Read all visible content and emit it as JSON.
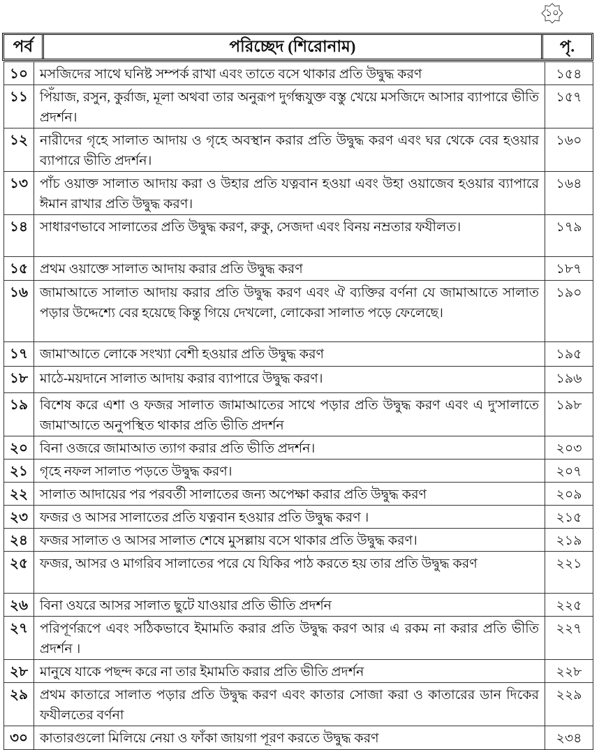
{
  "page_number": "১০",
  "header": {
    "col_part": "পর্ব",
    "col_chapter": "পরিচ্ছেদ (শিরোনাম)",
    "col_page": "পৃ."
  },
  "rows": [
    {
      "no": "১০",
      "title": "মসজিদের সাথে ঘনিষ্ট সম্পর্ক রাখা এবং তাতে বসে থাকার প্রতি উদ্বুদ্ধ করণ",
      "page": "১৫৪"
    },
    {
      "no": "১১",
      "title": "পিঁয়াজ, রসুন, কুর্রাজ, মূলা অথবা তার অনুরূপ দুর্গন্ধযুক্ত বস্তু খেয়ে মসজিদে আসার ব্যাপারে ভীতি প্রদর্শন।",
      "page": "১৫৭"
    },
    {
      "no": "১২",
      "title": "নারীদের গৃহে সালাত আদায় ও গৃহে অবস্থান করার প্রতি উদ্বুদ্ধ করণ এবং ঘর থেকে বের হওয়ার ব্যাপারে ভীতি প্রদর্শন।",
      "page": "১৬০"
    },
    {
      "no": "১৩",
      "title": "পাঁচ ওয়াক্ত সালাত আদায় করা ও উহার প্রতি যত্নবান হওয়া এবং উহা ওয়াজেব হওয়ার ব্যাপারে ঈমান রাখার প্রতি উদ্বুদ্ধ করণ।",
      "page": "১৬৪"
    },
    {
      "no": "১৪",
      "title": "সাধারণভাবে সালাতের প্রতি উদ্বুদ্ধ করণ, রুকু, সেজদা এবং বিনয় নম্রতার ফযীলত।",
      "page": "১৭৯"
    },
    {
      "no": "১৫",
      "title": "প্রথম ওয়াক্তে সালাত আদায় করার প্রতি উদ্বুদ্ধ করণ",
      "page": "১৮৭"
    },
    {
      "no": "১৬",
      "title": "জামাআতে সালাত আদায় করার প্রতি উদ্বুদ্ধ করণ এবং ঐ ব্যক্তির বর্ণনা যে জামাআতে সালাত পড়ার উদ্দেশ্যে বের হয়েছে কিন্তু গিয়ে দেখলো, লোকেরা সালাত পড়ে ফেলেছে।",
      "page": "১৯০"
    },
    {
      "no": "১৭",
      "title": "জামা'আতে লোকে সংখ্যা বেশী হওয়ার প্রতি উদ্বুদ্ধ করণ",
      "page": "১৯৫"
    },
    {
      "no": "১৮",
      "title": "মাঠে-ময়দানে সালাত আদায় করার ব্যাপারে উদ্বুদ্ধ করণ।",
      "page": "১৯৬"
    },
    {
      "no": "১৯",
      "title": "বিশেষ করে এশা ও ফজর সালাত জামাআতের সাথে পড়ার প্রতি উদ্বুদ্ধ করণ এবং এ দু'সালাতে জামা'আতে অনুপস্থিত থাকার প্রতি ভীতি প্রদর্শন",
      "page": "১৯৮"
    },
    {
      "no": "২০",
      "title": "বিনা ওজরে জামাআত ত্যাগ করার প্রতি ভীতি প্রদর্শন।",
      "page": "২০৩"
    },
    {
      "no": "২১",
      "title": "গৃহে নফল সালাত পড়তে উদ্বুদ্ধ করণ।",
      "page": "২০৭"
    },
    {
      "no": "২২",
      "title": "সালাত আদায়ের পর পরবর্তী সালাতের জন্য অপেক্ষা করার প্রতি উদ্বুদ্ধ করণ",
      "page": "২০৯"
    },
    {
      "no": "২৩",
      "title": "ফজর ও আসর সালাতের প্রতি যত্নবান হওয়ার প্রতি উদ্বুদ্ধ করণ ।",
      "page": "২১৫"
    },
    {
      "no": "২৪",
      "title": "ফজর সালাত ও আসর সালাত শেষে মুসল্লায় বসে থাকার প্রতি উদ্বুদ্ধ করণ।",
      "page": "২১৯"
    },
    {
      "no": "২৫",
      "title": "ফজর, আসর ও মাগরিব সালাতের পরে যে যিকির পাঠ করতে হয় তার প্রতি উদ্বুদ্ধ করণ",
      "page": "২২১"
    },
    {
      "no": "২৬",
      "title": "বিনা ওযরে আসর সালাত ছুটে যাওয়ার প্রতি ভীতি প্রদর্শন",
      "page": "২২৫"
    },
    {
      "no": "২৭",
      "title": "পরিপূর্ণরূপে এবং সঠিকভাবে ইমামতি করার প্রতি উদ্বুদ্ধ করণ আর এ রকম না করার প্রতি ভীতি প্রদর্শন ।",
      "page": "২২৭"
    },
    {
      "no": "২৮",
      "title": "মানুষে যাকে পছন্দ করে না তার ইমামতি করার প্রতি ভীতি প্রদর্শন",
      "page": "২২৮"
    },
    {
      "no": "২৯",
      "title": "প্রথম কাতারে সালাত পড়ার প্রতি উদ্বুদ্ধ করণ এবং কাতার সোজা করা ও কাতারের ডান দিকের ফযীলতের বর্ণনা",
      "page": "২২৯"
    },
    {
      "no": "৩০",
      "title": "কাতারগুলো মিলিয়ে নেয়া ও ফাঁকা জায়গা পূরণ করতে উদ্বুদ্ধ করণ",
      "page": "২৩৪"
    }
  ]
}
